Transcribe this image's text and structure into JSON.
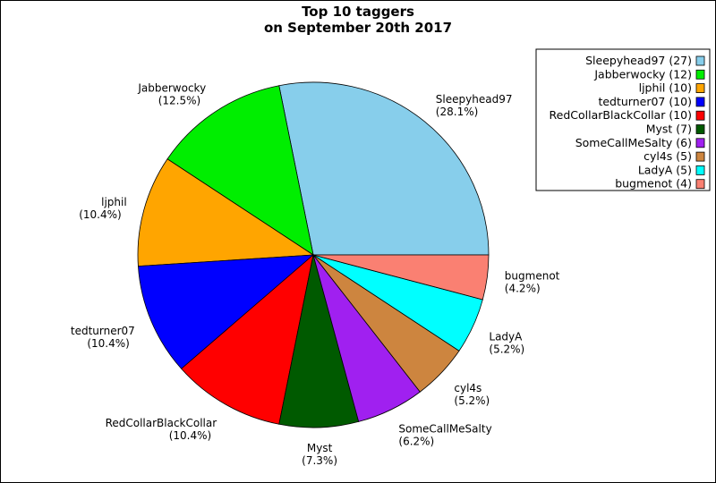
{
  "chart_data": {
    "type": "pie",
    "title": [
      "Top 10 taggers",
      "on September 20th 2017"
    ],
    "legend_position": "top-right",
    "slices": [
      {
        "name": "Sleepyhead97",
        "value": 27,
        "legend": "Sleepyhead97 (27)",
        "percent_label": "(28.1%)",
        "color": "#87CEEB"
      },
      {
        "name": "Jabberwocky",
        "value": 12,
        "legend": "Jabberwocky (12)",
        "percent_label": "(12.5%)",
        "color": "#00EE00"
      },
      {
        "name": "ljphil",
        "value": 10,
        "legend": "ljphil (10)",
        "percent_label": "(10.4%)",
        "color": "#FFA500"
      },
      {
        "name": "tedturner07",
        "value": 10,
        "legend": "tedturner07 (10)",
        "percent_label": "(10.4%)",
        "color": "#0000FF"
      },
      {
        "name": "RedCollarBlackCollar",
        "value": 10,
        "legend": "RedCollarBlackCollar (10)",
        "percent_label": "(10.4%)",
        "color": "#FF0000"
      },
      {
        "name": "Myst",
        "value": 7,
        "legend": "Myst (7)",
        "percent_label": "(7.3%)",
        "color": "#005A00"
      },
      {
        "name": "SomeCallMeSalty",
        "value": 6,
        "legend": "SomeCallMeSalty (6)",
        "percent_label": "(6.2%)",
        "color": "#A020F0"
      },
      {
        "name": "cyl4s",
        "value": 5,
        "legend": "cyl4s (5)",
        "percent_label": "(5.2%)",
        "color": "#CD853F"
      },
      {
        "name": "LadyA",
        "value": 5,
        "legend": "LadyA (5)",
        "percent_label": "(5.2%)",
        "color": "#00FFFF"
      },
      {
        "name": "bugmenot",
        "value": 4,
        "legend": "bugmenot (4)",
        "percent_label": "(4.2%)",
        "color": "#FA8072"
      }
    ]
  }
}
